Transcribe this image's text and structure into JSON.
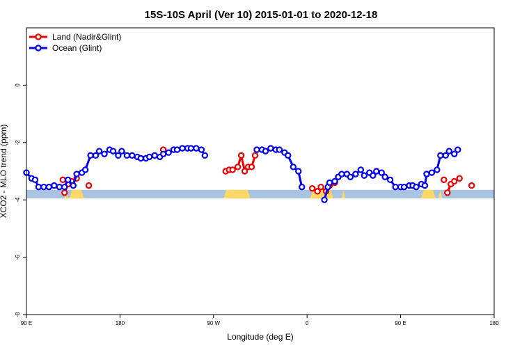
{
  "chart_data": {
    "type": "line",
    "title": "15S-10S April (Ver 10)   2015-01-01 to 2020-12-18",
    "xlabel": "Longitude (deg E)",
    "ylabel": "XCO2 - MLO trend (ppm)",
    "xlim": [
      -90,
      180
    ],
    "ylim": [
      -8,
      2
    ],
    "x_ticks": [
      {
        "value": -90,
        "label": "90 E"
      },
      {
        "value": -36,
        "label": "180"
      },
      {
        "value": 18,
        "label": "90 W"
      },
      {
        "value": 72,
        "label": "0"
      },
      {
        "value": 126,
        "label": "90 E"
      },
      {
        "value": 180,
        "label": "180"
      }
    ],
    "y_ticks": [
      {
        "value": 0,
        "label": "0"
      },
      {
        "value": -2,
        "label": "-2"
      },
      {
        "value": -4,
        "label": "-4"
      },
      {
        "value": -6,
        "label": "-6"
      },
      {
        "value": -8,
        "label": "-8"
      }
    ],
    "legend_position": "top-left",
    "grid": false,
    "series": [
      {
        "name": "Land (Nadir&Glint)",
        "color": "#ee0000",
        "segments": [
          [
            [
              -69,
              -3.3
            ]
          ],
          [
            [
              -68,
              -3.75
            ],
            [
              -66,
              -3.45
            ],
            [
              -64,
              -3.35
            ]
          ],
          [
            [
              -61,
              -3.25
            ]
          ],
          [
            [
              -54,
              -3.5
            ]
          ],
          [
            [
              -11,
              -2.25
            ]
          ],
          [
            [
              25,
              -3.0
            ],
            [
              27,
              -2.95
            ],
            [
              29,
              -2.95
            ],
            [
              32,
              -2.85
            ],
            [
              34,
              -2.45
            ],
            [
              36,
              -3.0
            ],
            [
              38,
              -2.85
            ],
            [
              40,
              -2.85
            ],
            [
              42,
              -2.45
            ]
          ],
          [
            [
              75,
              -3.6
            ],
            [
              78,
              -3.7
            ],
            [
              80,
              -3.55
            ],
            [
              83,
              -3.7
            ],
            [
              85,
              -3.5
            ],
            [
              88,
              -3.4
            ]
          ],
          [
            [
              151,
              -3.3
            ]
          ],
          [
            [
              153,
              -3.75
            ],
            [
              155,
              -3.45
            ],
            [
              157,
              -3.35
            ]
          ],
          [
            [
              160,
              -3.25
            ]
          ],
          [
            [
              167,
              -3.5
            ]
          ]
        ]
      },
      {
        "name": "Ocean (Glint)",
        "color": "#0000ee",
        "segments": [
          [
            [
              -90,
              -3.05
            ],
            [
              -87,
              -3.25
            ],
            [
              -85,
              -3.3
            ],
            [
              -83,
              -3.55
            ],
            [
              -80,
              -3.55
            ],
            [
              -77,
              -3.55
            ],
            [
              -74,
              -3.5
            ],
            [
              -71,
              -3.55
            ],
            [
              -68,
              -3.55
            ],
            [
              -66,
              -3.3
            ],
            [
              -63,
              -3.5
            ],
            [
              -61,
              -3.1
            ],
            [
              -58,
              -3.05
            ],
            [
              -56,
              -2.95
            ],
            [
              -53,
              -2.45
            ],
            [
              -50,
              -2.45
            ],
            [
              -48,
              -2.3
            ],
            [
              -45,
              -2.4
            ],
            [
              -42,
              -2.25
            ],
            [
              -40,
              -2.3
            ],
            [
              -37,
              -2.45
            ],
            [
              -35,
              -2.3
            ],
            [
              -32,
              -2.45
            ],
            [
              -29,
              -2.45
            ],
            [
              -26,
              -2.5
            ],
            [
              -24,
              -2.55
            ],
            [
              -21,
              -2.55
            ],
            [
              -19,
              -2.5
            ],
            [
              -16,
              -2.45
            ],
            [
              -13,
              -2.5
            ],
            [
              -11,
              -2.4
            ],
            [
              -8,
              -2.35
            ],
            [
              -5,
              -2.25
            ],
            [
              -3,
              -2.25
            ],
            [
              0,
              -2.2
            ],
            [
              3,
              -2.2
            ],
            [
              5,
              -2.2
            ],
            [
              8,
              -2.2
            ],
            [
              11,
              -2.25
            ],
            [
              13,
              -2.45
            ]
          ],
          [
            [
              43,
              -2.25
            ],
            [
              46,
              -2.25
            ],
            [
              48,
              -2.3
            ],
            [
              51,
              -2.2
            ],
            [
              54,
              -2.25
            ],
            [
              56,
              -2.25
            ],
            [
              59,
              -2.35
            ],
            [
              61,
              -2.45
            ],
            [
              64,
              -2.85
            ],
            [
              67,
              -3.0
            ],
            [
              69,
              -3.55
            ]
          ],
          [
            [
              82,
              -4.0
            ],
            [
              84,
              -3.55
            ],
            [
              85,
              -3.4
            ],
            [
              88,
              -3.35
            ],
            [
              90,
              -3.2
            ],
            [
              92,
              -3.1
            ],
            [
              95,
              -3.1
            ],
            [
              97,
              -3.2
            ],
            [
              100,
              -3.1
            ],
            [
              103,
              -2.95
            ],
            [
              105,
              -3.15
            ],
            [
              108,
              -3.05
            ],
            [
              110,
              -3.15
            ],
            [
              112,
              -3.0
            ],
            [
              115,
              -3.05
            ],
            [
              117,
              -3.2
            ],
            [
              120,
              -3.3
            ],
            [
              123,
              -3.55
            ],
            [
              126,
              -3.55
            ],
            [
              128,
              -3.55
            ],
            [
              131,
              -3.5
            ],
            [
              133,
              -3.5
            ],
            [
              135,
              -3.55
            ],
            [
              138,
              -3.45
            ],
            [
              140,
              -3.5
            ],
            [
              141,
              -3.1
            ],
            [
              144,
              -3.05
            ],
            [
              147,
              -2.95
            ],
            [
              149,
              -2.45
            ],
            [
              152,
              -2.45
            ],
            [
              154,
              -2.3
            ],
            [
              157,
              -2.4
            ],
            [
              159,
              -2.25
            ]
          ]
        ]
      }
    ],
    "background_bar": {
      "y_range": [
        -3.95,
        -3.65
      ],
      "color": "#a9c4e1",
      "land_fill_color": "#ffd966",
      "land_spans": [
        [
          -64,
          -58
        ],
        [
          25,
          38
        ],
        [
          75,
          86
        ],
        [
          139,
          145
        ]
      ],
      "land_peaks": [
        -67,
        -62,
        93,
        149
      ]
    }
  }
}
